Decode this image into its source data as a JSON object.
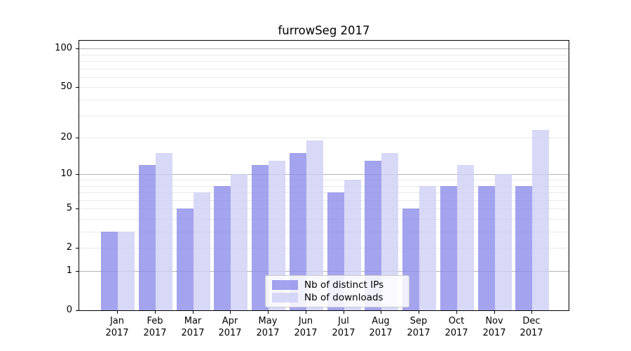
{
  "chart_data": {
    "type": "bar",
    "title": "furrowSeg 2017",
    "categories": [
      "Jan 2017",
      "Feb 2017",
      "Mar 2017",
      "Apr 2017",
      "May 2017",
      "Jun 2017",
      "Jul 2017",
      "Aug 2017",
      "Sep 2017",
      "Oct 2017",
      "Nov 2017",
      "Dec 2017"
    ],
    "series": [
      {
        "name": "Nb of distinct IPs",
        "color": "#8c8cea",
        "values": [
          3,
          12,
          5,
          8,
          12,
          15,
          7,
          13,
          5,
          8,
          8,
          8
        ]
      },
      {
        "name": "Nb of downloads",
        "color": "#cecef5",
        "values": [
          3,
          15,
          7,
          10,
          13,
          19,
          9,
          15,
          8,
          12,
          10,
          23
        ]
      }
    ],
    "y_axis": {
      "scale": "log1p",
      "ticks": [
        0,
        1,
        2,
        5,
        10,
        20,
        50,
        100
      ],
      "max": 118
    },
    "x_axis": {
      "tick_label_year_on_second_line": true
    },
    "grid": {
      "major_lines": [
        1,
        10,
        100
      ],
      "minor_lines": [
        2,
        3,
        4,
        5,
        6,
        7,
        8,
        9,
        20,
        30,
        40,
        50,
        60,
        70,
        80,
        90
      ]
    },
    "legend": {
      "position": "lower-center"
    },
    "colors": {
      "axis": "#000000",
      "grid_major": "#b4b4b4",
      "grid_minor": "#e9e9e9",
      "background": "#ffffff"
    }
  }
}
